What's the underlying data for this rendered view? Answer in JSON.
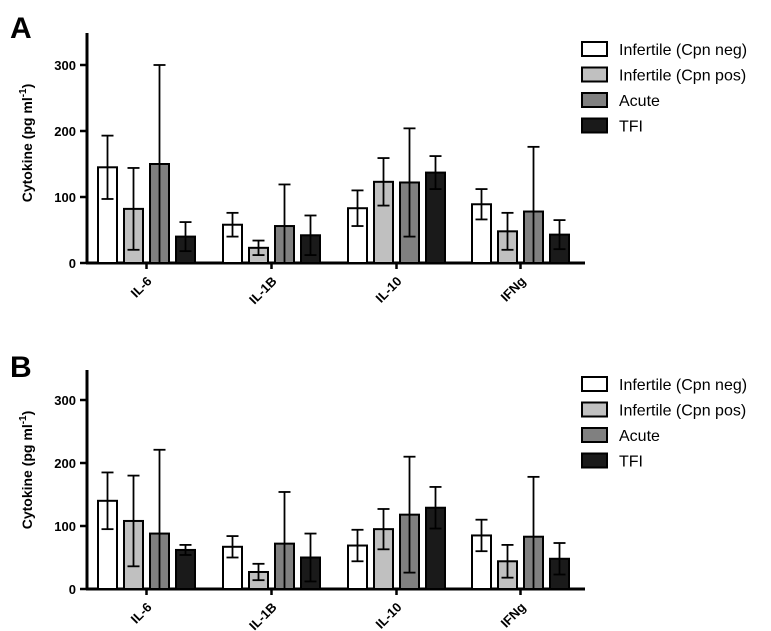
{
  "chart_data": [
    {
      "type": "bar",
      "panel": "A",
      "ylabel_main": "Cytokine (pg ml",
      "ylabel_sup": "-1",
      "ylabel_close": ")",
      "ylim": [
        0,
        350
      ],
      "yticks": [
        "0",
        "100",
        "200",
        "300"
      ],
      "categories": [
        "IL-6",
        "IL-1B",
        "IL-10",
        "IFNg"
      ],
      "series": [
        {
          "name": "Infertile (Cpn neg)",
          "color": "#ffffff",
          "values": [
            145,
            58,
            83,
            89
          ],
          "err": [
            48,
            18,
            27,
            23
          ]
        },
        {
          "name": "Infertile (Cpn pos)",
          "color": "#c0c0c0",
          "values": [
            82,
            23,
            123,
            48
          ],
          "err": [
            62,
            11,
            36,
            28
          ]
        },
        {
          "name": "Acute",
          "color": "#808080",
          "values": [
            150,
            56,
            122,
            78
          ],
          "err": [
            150,
            63,
            82,
            98
          ]
        },
        {
          "name": "TFI",
          "color": "#1a1a1a",
          "values": [
            40,
            42,
            137,
            43
          ],
          "err": [
            22,
            30,
            25,
            22
          ]
        }
      ],
      "legend": "top-right"
    },
    {
      "type": "bar",
      "panel": "B",
      "ylabel_main": "Cytokine (pg ml",
      "ylabel_sup": "-1",
      "ylabel_close": ")",
      "ylim": [
        0,
        350
      ],
      "yticks": [
        "0",
        "100",
        "200",
        "300"
      ],
      "categories": [
        "IL-6",
        "IL-1B",
        "IL-10",
        "IFNg"
      ],
      "series": [
        {
          "name": "Infertile (Cpn neg)",
          "color": "#ffffff",
          "values": [
            140,
            67,
            69,
            85
          ],
          "err": [
            45,
            17,
            25,
            25
          ]
        },
        {
          "name": "Infertile (Cpn pos)",
          "color": "#c0c0c0",
          "values": [
            108,
            27,
            95,
            44
          ],
          "err": [
            72,
            13,
            32,
            26
          ]
        },
        {
          "name": "Acute",
          "color": "#808080",
          "values": [
            88,
            72,
            118,
            83
          ],
          "err": [
            133,
            82,
            92,
            95
          ]
        },
        {
          "name": "TFI",
          "color": "#1a1a1a",
          "values": [
            62,
            50,
            129,
            48
          ],
          "err": [
            8,
            38,
            33,
            25
          ]
        }
      ],
      "legend": "top-right"
    }
  ]
}
